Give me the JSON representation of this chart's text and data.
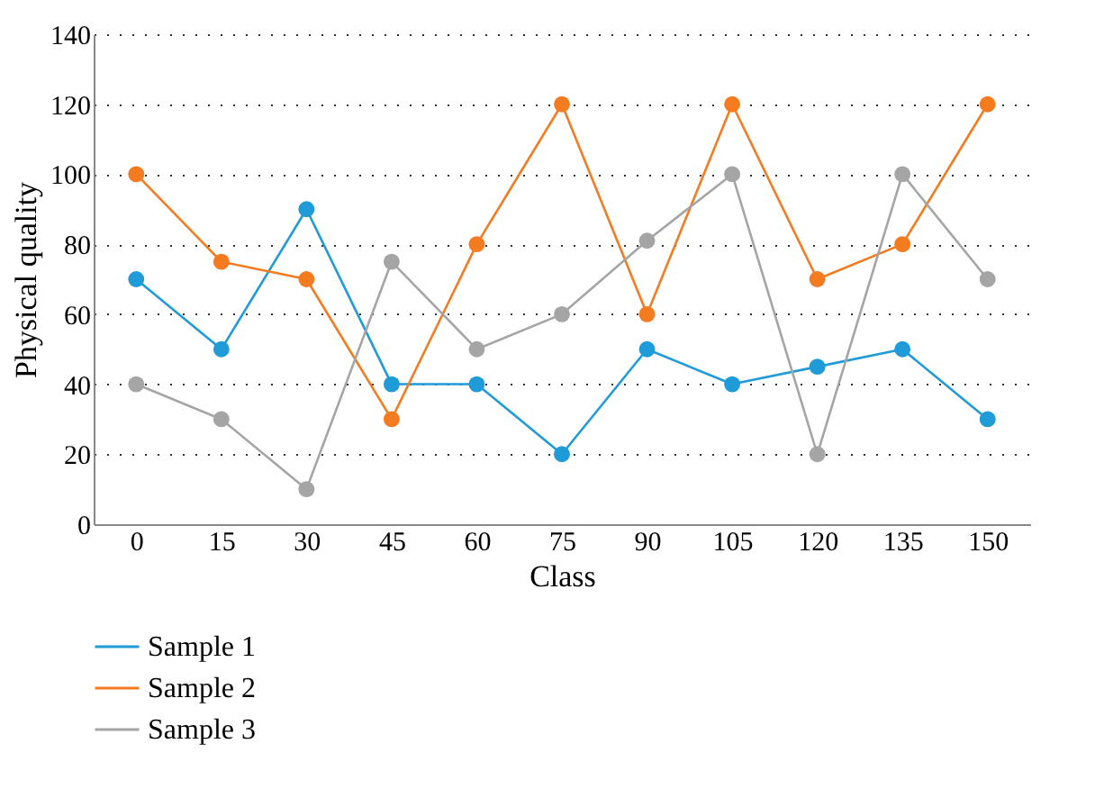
{
  "chart_data": {
    "type": "line",
    "xlabel": "Class",
    "ylabel": "Physical quality",
    "categories": [
      "0",
      "15",
      "30",
      "45",
      "60",
      "75",
      "90",
      "105",
      "120",
      "135",
      "150"
    ],
    "series": [
      {
        "name": "Sample 1",
        "color": "#1f9bd7",
        "values": [
          70,
          50,
          90,
          40,
          40,
          20,
          50,
          40,
          45,
          50,
          30
        ]
      },
      {
        "name": "Sample 2",
        "color": "#f47b20",
        "values": [
          100,
          75,
          70,
          30,
          80,
          120,
          60,
          120,
          70,
          80,
          120
        ]
      },
      {
        "name": "Sample 3",
        "color": "#a5a5a5",
        "values": [
          40,
          30,
          10,
          75,
          50,
          60,
          81,
          100,
          20,
          100,
          70
        ]
      }
    ],
    "ylim": [
      0,
      140
    ],
    "yticks": [
      0,
      20,
      40,
      60,
      80,
      100,
      120,
      140
    ],
    "grid": "y",
    "legend": "bottom",
    "marker": "circle",
    "line_style": "solid"
  }
}
